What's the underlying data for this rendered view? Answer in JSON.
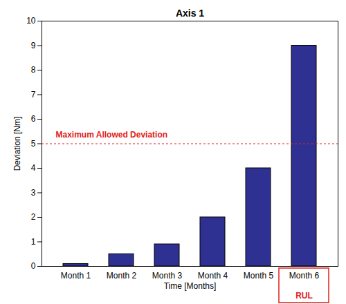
{
  "chart_data": {
    "type": "bar",
    "title": "Axis 1",
    "categories": [
      "Month 1",
      "Month 2",
      "Month 3",
      "Month 4",
      "Month 5",
      "Month 6"
    ],
    "values": [
      0.1,
      0.5,
      0.9,
      2,
      4,
      9
    ],
    "color": "#2e3192",
    "x_label": "Time [Months]",
    "y_label": "Deviation [Nm]",
    "ylim": [
      0,
      10
    ],
    "yticks": [
      0,
      1,
      2,
      3,
      4,
      5,
      6,
      7,
      8,
      9,
      10
    ],
    "grid": false,
    "annotations": [
      {
        "text": "Maximum Allowed Deviation",
        "y": 5
      },
      {
        "text": "RUL",
        "category": "Month 6"
      }
    ]
  }
}
